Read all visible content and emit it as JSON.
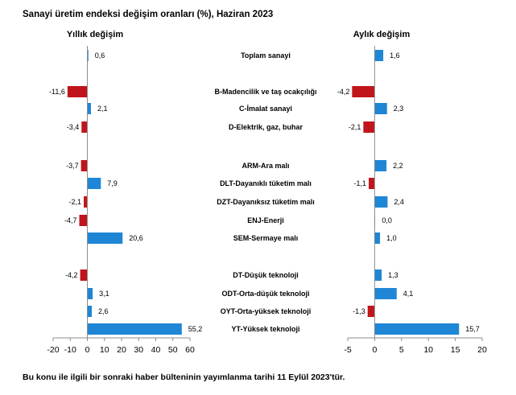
{
  "title": "Sanayi üretim endeksi değişim oranları (%), Haziran 2023",
  "footnote": "Bu konu ile ilgili bir sonraki haber bülteninin yayımlanma tarihi 11 Eylül 2023'tür.",
  "chart_data": {
    "type": "bar",
    "orientation": "horizontal",
    "categories": [
      "Toplam sanayi",
      "B-Madencilik ve taş ocakçılığı",
      "C-İmalat sanayi",
      "D-Elektrik, gaz, buhar",
      "ARM-Ara malı",
      "DLT-Dayanıklı tüketim malı",
      "DZT-Dayanıksız tüketim malı",
      "ENJ-Enerji",
      "SEM-Sermaye malı",
      "DT-Düşük teknoloji",
      "ODT-Orta-düşük teknoloji",
      "OYT-Orta-yüksek teknoloji",
      "YT-Yüksek teknoloji"
    ],
    "panels": [
      {
        "title": "Yıllık değişim",
        "values": [
          0.6,
          -11.6,
          2.1,
          -3.4,
          -3.7,
          7.9,
          -2.1,
          -4.7,
          20.6,
          -4.2,
          3.1,
          2.6,
          55.2
        ],
        "value_labels": [
          "0,6",
          "-11,6",
          "2,1",
          "-3,4",
          "-3,7",
          "7,9",
          "-2,1",
          "-4,7",
          "20,6",
          "-4,2",
          "3,1",
          "2,6",
          "55,2"
        ],
        "xlim": [
          -20,
          60
        ],
        "ticks": [
          -20,
          -10,
          0,
          10,
          20,
          30,
          40,
          50,
          60
        ]
      },
      {
        "title": "Aylık değişim",
        "values": [
          1.6,
          -4.2,
          2.3,
          -2.1,
          2.2,
          -1.1,
          2.4,
          0.0,
          1.0,
          1.3,
          4.1,
          -1.3,
          15.7
        ],
        "value_labels": [
          "1,6",
          "-4,2",
          "2,3",
          "-2,1",
          "2,2",
          "-1,1",
          "2,4",
          "0,0",
          "1,0",
          "1,3",
          "4,1",
          "-1,3",
          "15,7"
        ],
        "xlim": [
          -5,
          20
        ],
        "ticks": [
          -5,
          0,
          5,
          10,
          15,
          20
        ]
      }
    ],
    "colors": {
      "positive": "#1f86d6",
      "negative": "#c0151b",
      "axis": "#8c8c8c"
    },
    "grid": false,
    "legend": "none"
  }
}
